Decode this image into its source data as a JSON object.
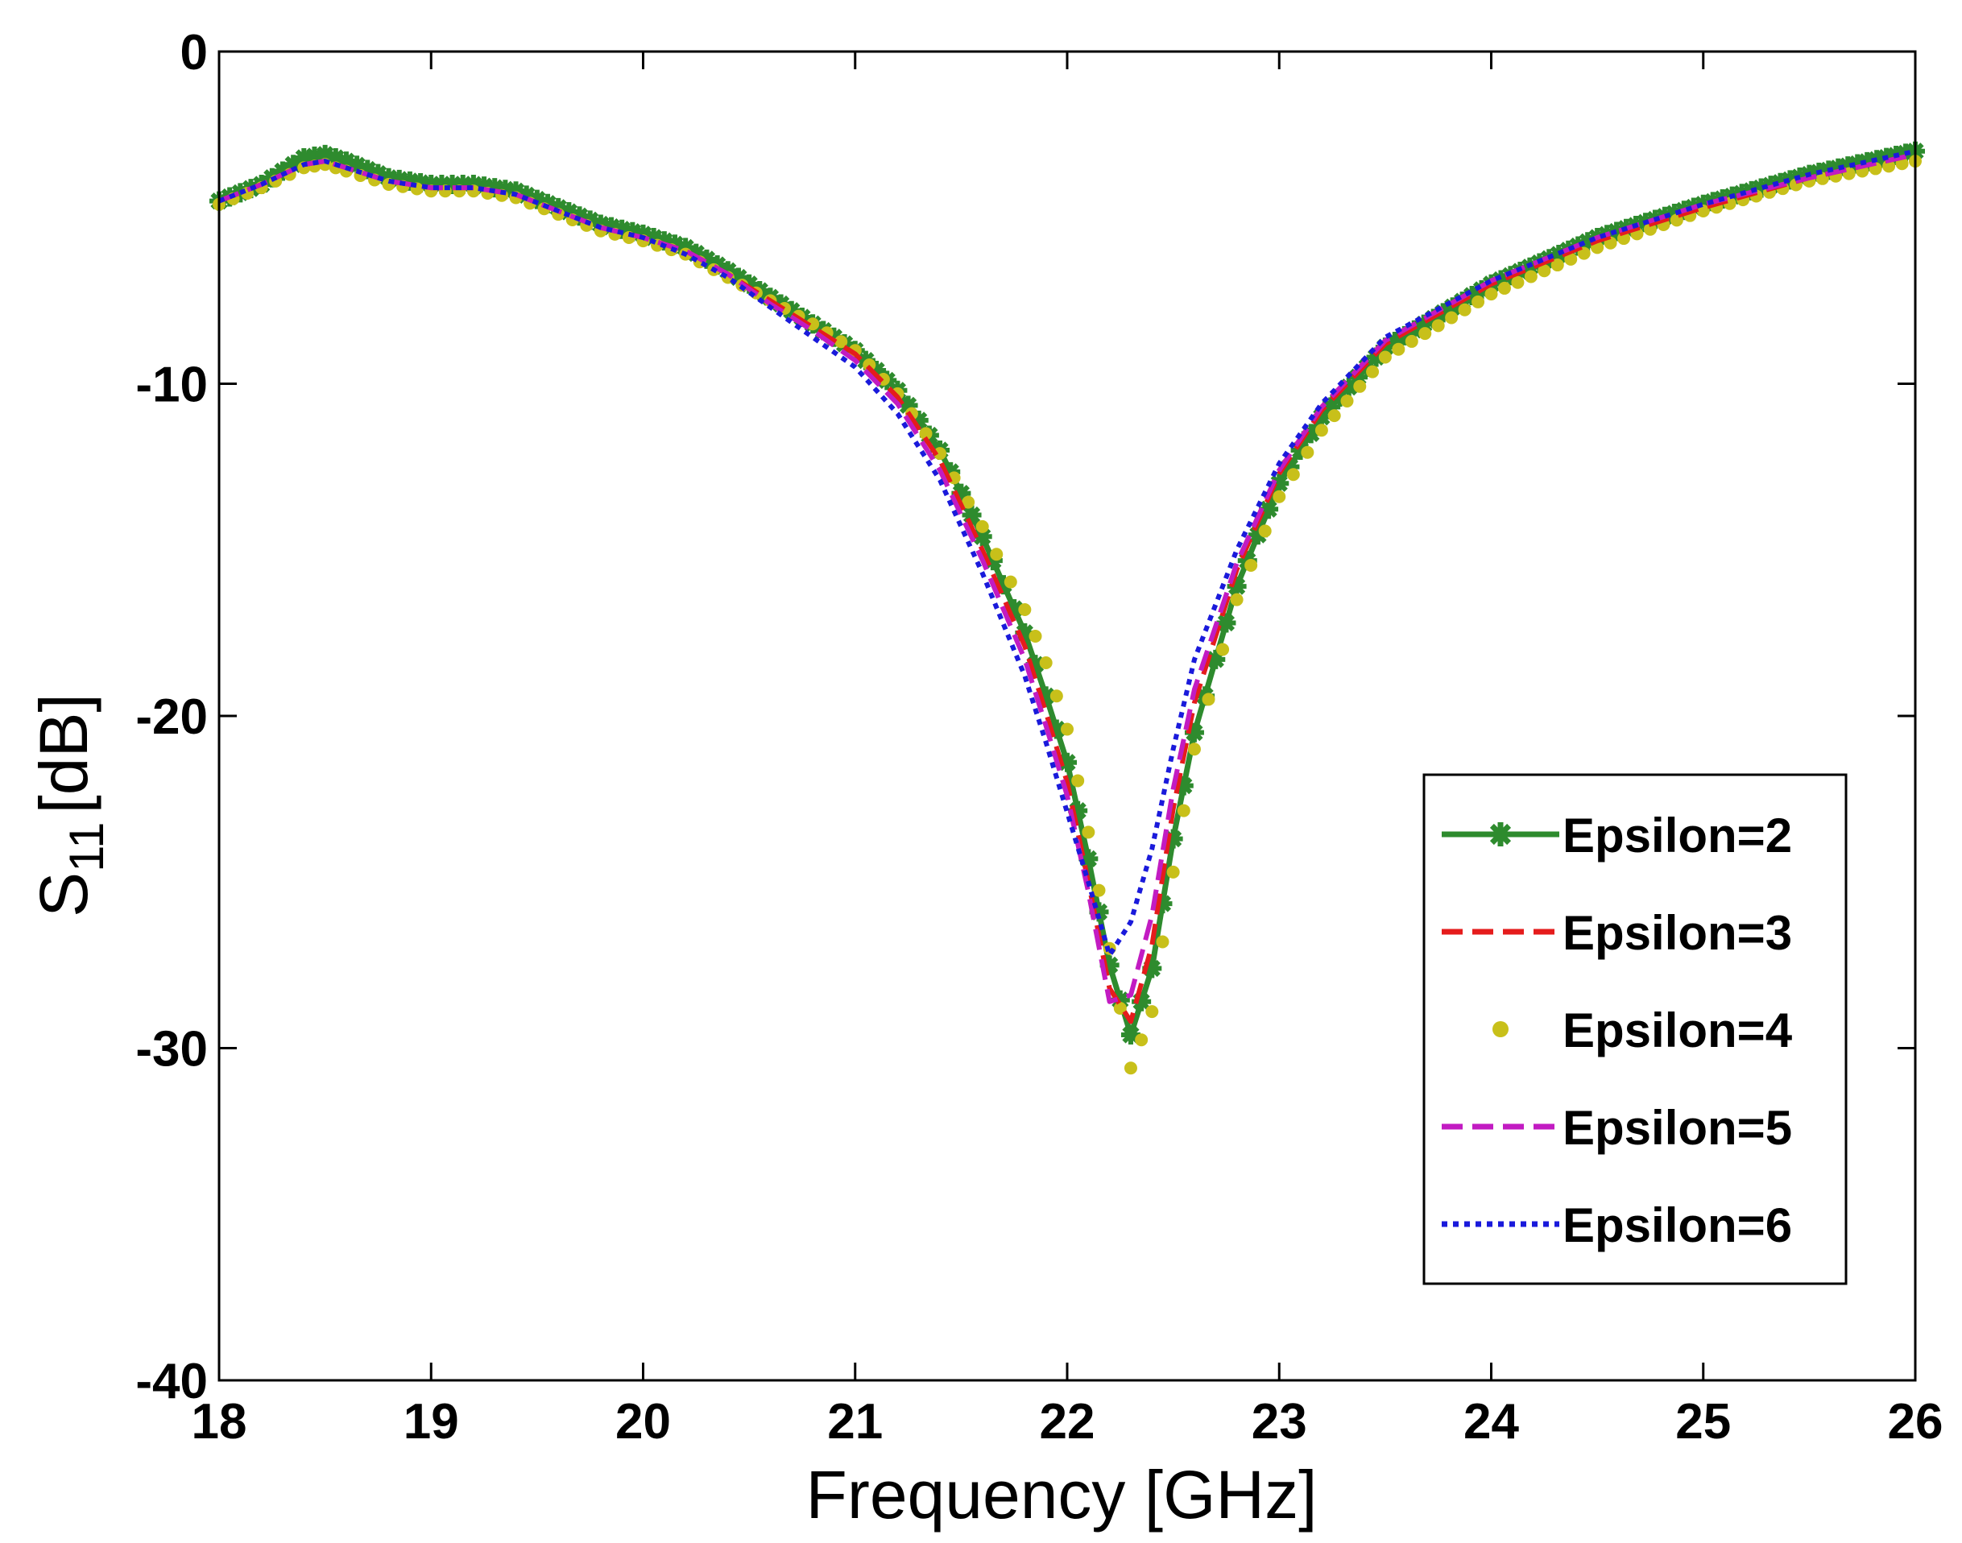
{
  "chart_data": {
    "type": "line",
    "title": "",
    "xlabel": "Frequency [GHz]",
    "ylabel_main": "S",
    "ylabel_sub": "11",
    "ylabel_unit": "[dB]",
    "xlim": [
      18,
      26
    ],
    "ylim": [
      -40,
      0
    ],
    "xticks": [
      18,
      19,
      20,
      21,
      22,
      23,
      24,
      25,
      26
    ],
    "yticks": [
      0,
      -10,
      -20,
      -30,
      -40
    ],
    "xtick_labels": [
      "18",
      "19",
      "20",
      "21",
      "22",
      "23",
      "24",
      "25",
      "26"
    ],
    "ytick_labels": [
      "0",
      "-10",
      "-20",
      "-30",
      "-40"
    ],
    "grid": false,
    "legend_position": "right",
    "x": [
      18.0,
      18.2,
      18.4,
      18.5,
      18.6,
      18.8,
      19.0,
      19.2,
      19.4,
      19.6,
      19.8,
      20.0,
      20.2,
      20.4,
      20.6,
      20.8,
      21.0,
      21.2,
      21.4,
      21.6,
      21.8,
      21.9,
      22.0,
      22.1,
      22.2,
      22.3,
      22.4,
      22.5,
      22.6,
      22.8,
      23.0,
      23.2,
      23.5,
      24.0,
      24.5,
      25.0,
      25.5,
      26.0
    ],
    "series": [
      {
        "name": "Epsilon=2",
        "color": "#2e8b2e",
        "style": "solid-star",
        "values": [
          -4.5,
          -4.0,
          -3.2,
          -3.1,
          -3.3,
          -3.8,
          -4.0,
          -4.0,
          -4.2,
          -4.7,
          -5.2,
          -5.5,
          -5.9,
          -6.6,
          -7.4,
          -8.2,
          -9.0,
          -10.2,
          -12.0,
          -14.6,
          -17.5,
          -19.4,
          -21.4,
          -24.3,
          -27.5,
          -29.6,
          -27.6,
          -23.7,
          -20.5,
          -16.1,
          -13.0,
          -11.0,
          -8.9,
          -7.0,
          -5.6,
          -4.6,
          -3.7,
          -3.0
        ]
      },
      {
        "name": "Epsilon=3",
        "color": "#e51c1c",
        "style": "dashed",
        "values": [
          -4.5,
          -4.0,
          -3.4,
          -3.3,
          -3.5,
          -3.9,
          -4.1,
          -4.1,
          -4.3,
          -4.8,
          -5.3,
          -5.6,
          -6.0,
          -6.7,
          -7.5,
          -8.3,
          -9.1,
          -10.4,
          -12.3,
          -15.0,
          -17.9,
          -19.9,
          -22.0,
          -25.0,
          -28.2,
          -29.2,
          -26.9,
          -22.8,
          -19.6,
          -15.6,
          -12.7,
          -10.8,
          -8.8,
          -7.0,
          -5.7,
          -4.7,
          -3.8,
          -3.1
        ]
      },
      {
        "name": "Epsilon=4",
        "color": "#c8c01a",
        "style": "dot-marker",
        "values": [
          -4.6,
          -4.1,
          -3.5,
          -3.4,
          -3.6,
          -4.0,
          -4.2,
          -4.2,
          -4.4,
          -4.9,
          -5.4,
          -5.7,
          -6.1,
          -6.8,
          -7.5,
          -8.2,
          -9.0,
          -10.3,
          -12.1,
          -14.3,
          -16.8,
          -18.4,
          -20.4,
          -23.5,
          -27.0,
          -30.6,
          -28.9,
          -24.7,
          -21.0,
          -16.5,
          -13.4,
          -11.4,
          -9.2,
          -7.3,
          -5.9,
          -4.8,
          -3.9,
          -3.3
        ]
      },
      {
        "name": "Epsilon=5",
        "color": "#c21bc2",
        "style": "dashed",
        "values": [
          -4.5,
          -4.0,
          -3.4,
          -3.3,
          -3.5,
          -3.9,
          -4.1,
          -4.1,
          -4.3,
          -4.8,
          -5.3,
          -5.6,
          -6.0,
          -6.7,
          -7.6,
          -8.4,
          -9.3,
          -10.6,
          -12.6,
          -15.3,
          -18.3,
          -20.3,
          -22.4,
          -25.3,
          -28.6,
          -28.4,
          -26.0,
          -22.2,
          -19.2,
          -15.4,
          -12.6,
          -10.7,
          -8.7,
          -6.9,
          -5.6,
          -4.6,
          -3.8,
          -3.1
        ]
      },
      {
        "name": "Epsilon=6",
        "color": "#1a1adb",
        "style": "dotted",
        "values": [
          -4.5,
          -4.0,
          -3.4,
          -3.3,
          -3.5,
          -3.9,
          -4.1,
          -4.1,
          -4.3,
          -4.8,
          -5.3,
          -5.6,
          -6.1,
          -6.8,
          -7.7,
          -8.6,
          -9.5,
          -10.9,
          -12.9,
          -15.7,
          -18.8,
          -20.8,
          -22.9,
          -25.0,
          -27.2,
          -26.2,
          -24.0,
          -21.0,
          -18.3,
          -15.0,
          -12.4,
          -10.6,
          -8.6,
          -6.9,
          -5.6,
          -4.6,
          -3.7,
          -3.0
        ]
      }
    ]
  }
}
